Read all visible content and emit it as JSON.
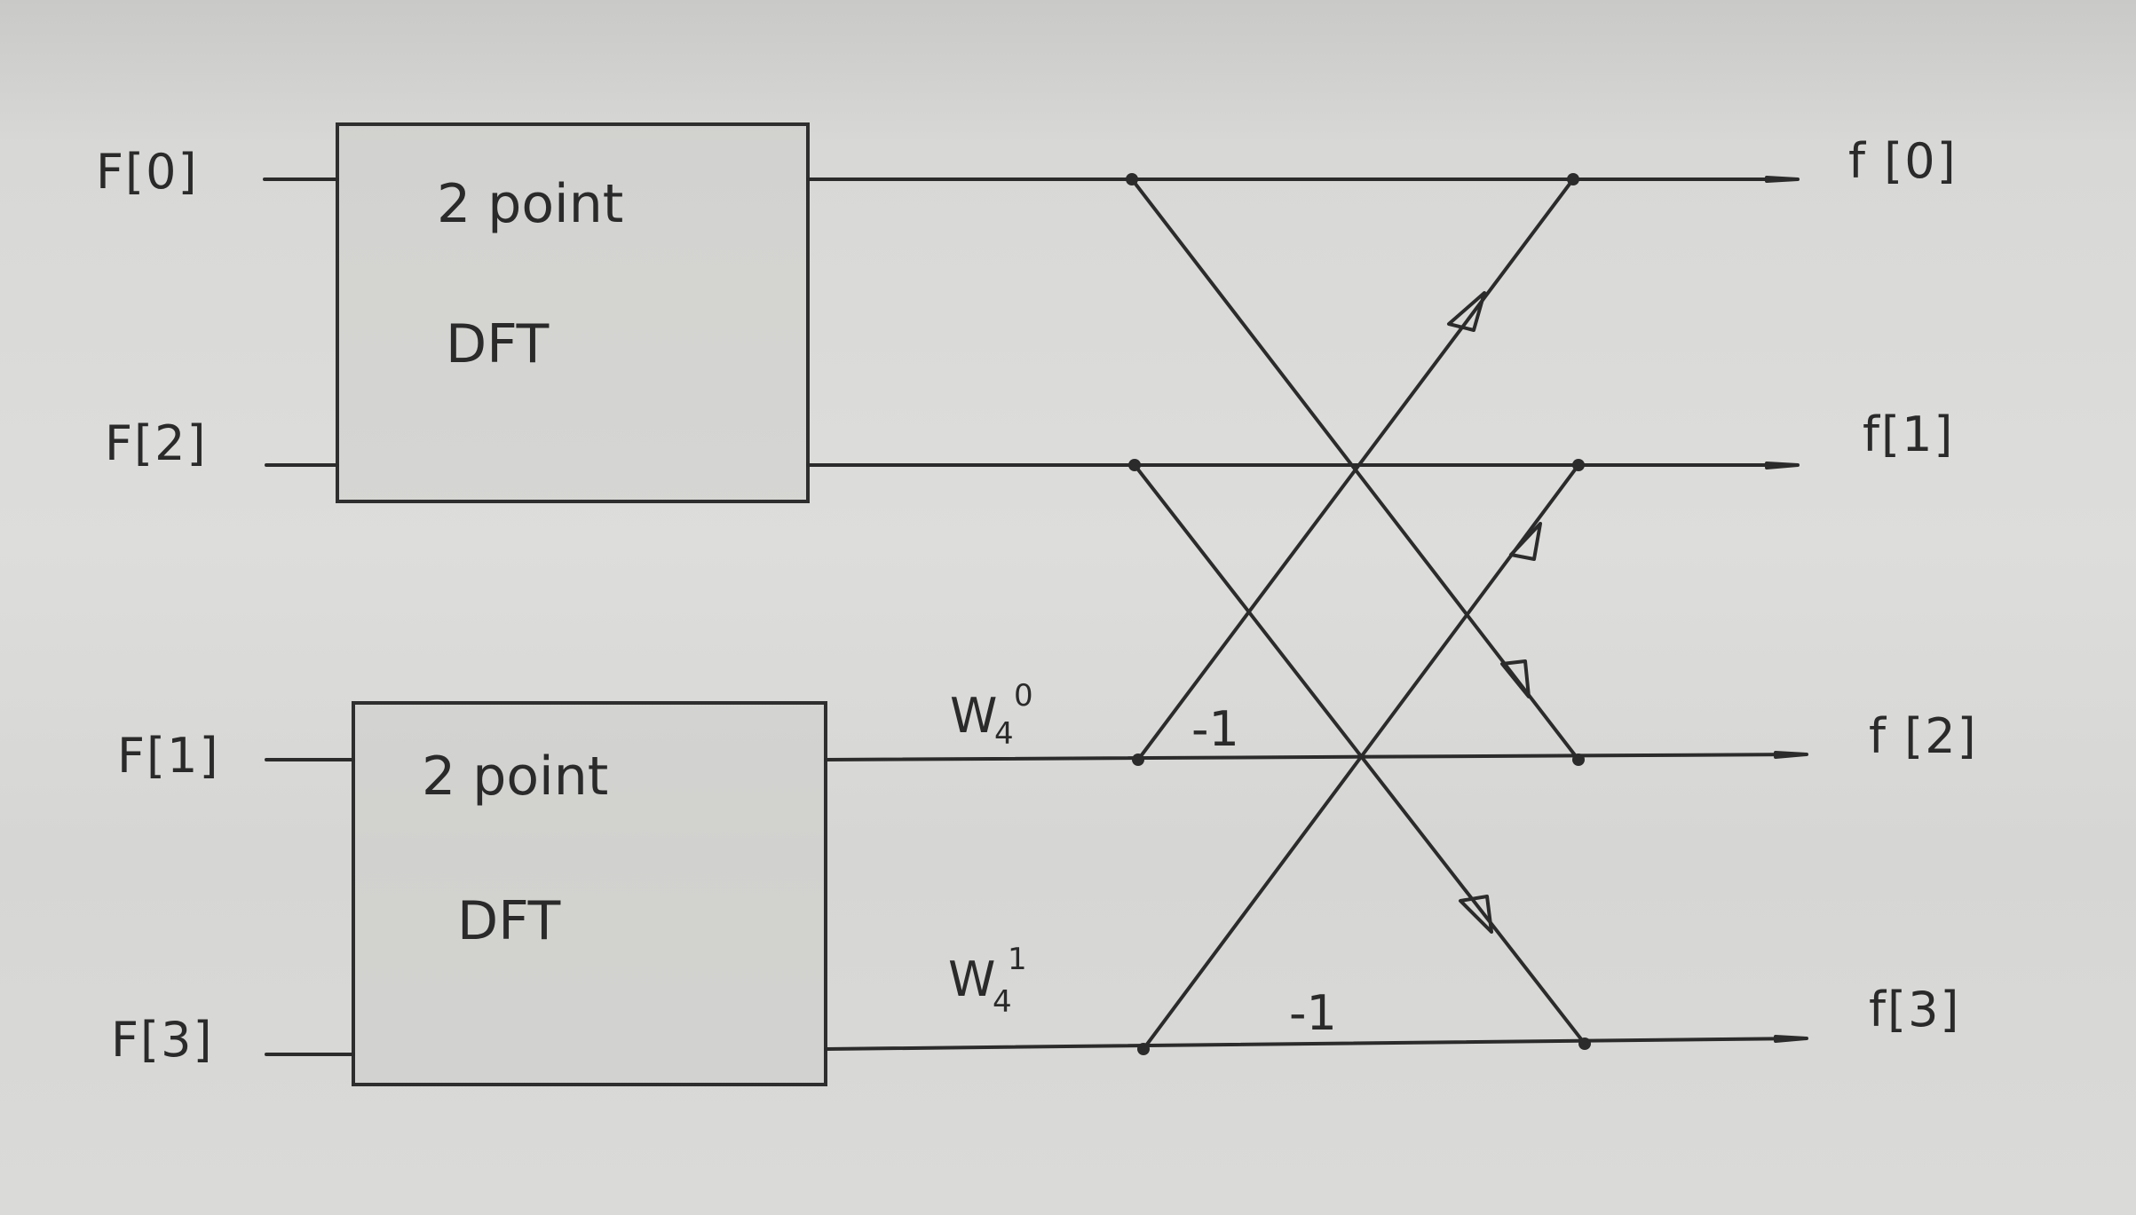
{
  "inputs": [
    "F[0]",
    "F[2]",
    "F[1]",
    "F[3]"
  ],
  "outputs": [
    "f [0]",
    "f[1]",
    "f [2]",
    "f[3]"
  ],
  "blocks": [
    {
      "line1": "2 point",
      "line2": "DFT"
    },
    {
      "line1": "2 point",
      "line2": "DFT"
    }
  ],
  "twiddles": [
    {
      "base": "W",
      "sub": "4",
      "sup": "0"
    },
    {
      "base": "W",
      "sub": "4",
      "sup": "1"
    }
  ],
  "multipliers": [
    "-1",
    "-1"
  ]
}
